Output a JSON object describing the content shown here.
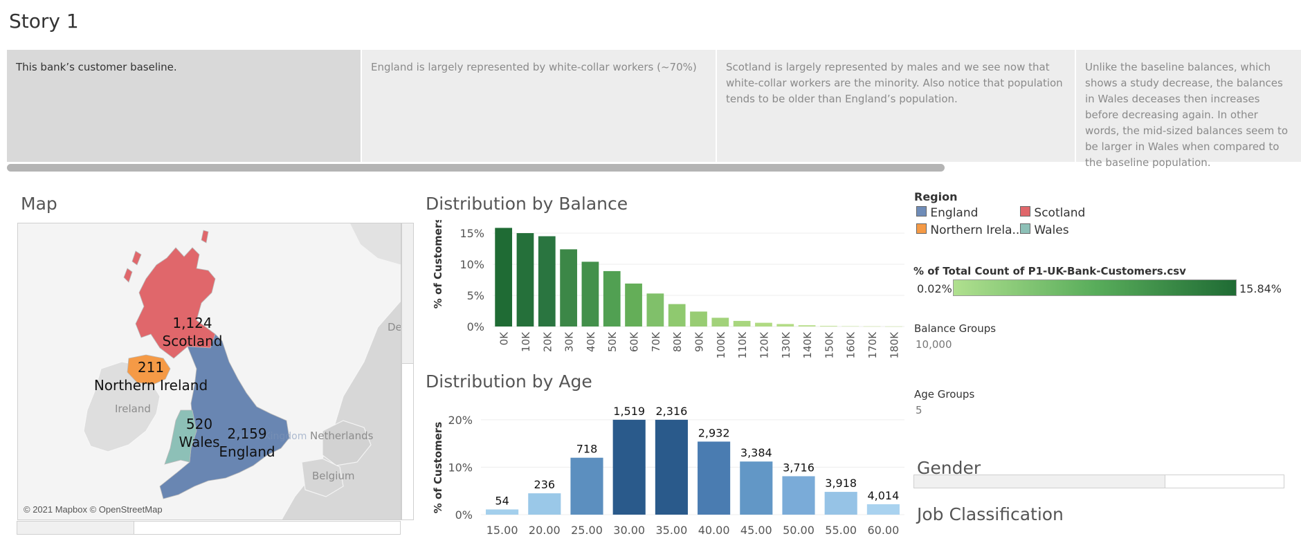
{
  "story": {
    "title": "Story 1"
  },
  "story_points": [
    {
      "text": "This bank’s customer baseline.",
      "active": true
    },
    {
      "text": "England is largely represented by white-collar workers (~70%)",
      "active": false
    },
    {
      "text": "Scotland is largely represented by males and we see now that white-collar workers are the minority. Also notice that population tends to be older than England’s population.",
      "active": false
    },
    {
      "text": "Unlike the baseline balances, which shows a study decrease, the balances in Wales deceases then increases before decreasing again. In other words, the mid-sized balances seem to be larger in Wales when compared to the baseline population.",
      "active": false
    }
  ],
  "map": {
    "title": "Map",
    "copyright": "© 2021 Mapbox © OpenStreetMap",
    "regions": [
      {
        "name": "Scotland",
        "count": "1,124",
        "color": "#e0676b"
      },
      {
        "name": "Northern Ireland",
        "count": "211",
        "color": "#f59a46"
      },
      {
        "name": "Wales",
        "count": "520",
        "color": "#8dc0b7"
      },
      {
        "name": "England",
        "count": "2,159",
        "color": "#6986b2"
      }
    ],
    "basemap_labels": [
      "Ireland",
      "Netherlands",
      "Belgium",
      "De",
      "United Kingdom"
    ]
  },
  "legends": {
    "region": {
      "title": "Region",
      "items": [
        {
          "label": "England",
          "color": "#6f8cb8"
        },
        {
          "label": "Scotland",
          "color": "#e0676b"
        },
        {
          "label": "Northern Irela..",
          "color": "#f59a46"
        },
        {
          "label": "Wales",
          "color": "#8dc0b7"
        }
      ]
    },
    "pct": {
      "title": "% of Total Count of P1-UK-Bank-Customers.csv",
      "min": "0.02%",
      "max": "15.84%"
    },
    "balance_groups": {
      "title": "Balance Groups",
      "value": "10,000"
    },
    "age_groups": {
      "title": "Age Groups",
      "value": "5"
    },
    "gender": {
      "title": "Gender"
    },
    "job": {
      "title": "Job Classification"
    }
  },
  "chart_data": [
    {
      "type": "bar",
      "title": "Distribution by Balance",
      "ylabel": "% of Customers",
      "categories": [
        "0K",
        "10K",
        "20K",
        "30K",
        "40K",
        "50K",
        "60K",
        "70K",
        "80K",
        "90K",
        "100K",
        "110K",
        "120K",
        "130K",
        "140K",
        "150K",
        "160K",
        "170K",
        "180K"
      ],
      "values": [
        15.84,
        15.0,
        14.5,
        12.4,
        10.4,
        8.9,
        6.9,
        5.3,
        3.6,
        2.4,
        1.4,
        0.9,
        0.6,
        0.4,
        0.2,
        0.1,
        0.05,
        0.03,
        0.02
      ],
      "yticks": [
        "0%",
        "5%",
        "10%",
        "15%"
      ],
      "ylim": [
        0,
        16
      ],
      "colors": [
        "#1f6b34",
        "#25703a",
        "#2a7540",
        "#3c8747",
        "#43904b",
        "#51a052",
        "#64ae58",
        "#80c06a",
        "#8fc96f",
        "#98cc73",
        "#a2d27a",
        "#a8d67e",
        "#b0da83",
        "#b3dc86",
        "#b7de89",
        "#bbe08c",
        "#bfe18e",
        "#c2e28f",
        "#c4e390"
      ],
      "grid": true
    },
    {
      "type": "bar",
      "title": "Distribution by Age",
      "ylabel": "% of Customers",
      "categories": [
        "15.00",
        "20.00",
        "25.00",
        "30.00",
        "35.00",
        "40.00",
        "45.00",
        "50.00",
        "55.00",
        "60.00"
      ],
      "values": [
        1.1,
        4.5,
        12.0,
        20.0,
        20.0,
        15.4,
        11.2,
        8.1,
        4.8,
        2.2
      ],
      "data_labels": [
        "54",
        "236",
        "718",
        "1,519",
        "2,316",
        "2,932",
        "3,384",
        "3,716",
        "3,918",
        "4,014"
      ],
      "yticks": [
        "0%",
        "10%",
        "20%"
      ],
      "ylim": [
        0,
        21
      ],
      "colors": [
        "#a3cfec",
        "#9ac8e8",
        "#5c8fbf",
        "#2a5a8b",
        "#2a5a8b",
        "#4a7cb1",
        "#6297c6",
        "#7aabd8",
        "#96c3e6",
        "#a9d2ef"
      ],
      "grid": true
    }
  ]
}
